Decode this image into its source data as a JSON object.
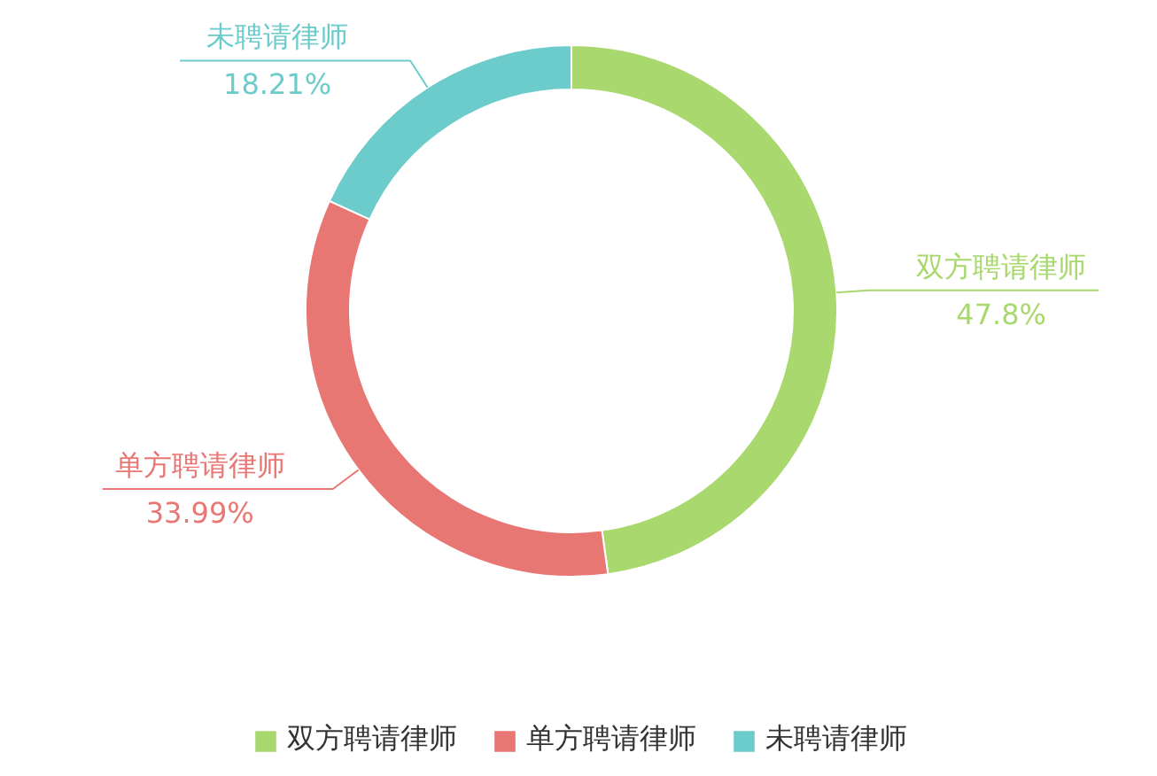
{
  "chart_data": {
    "type": "donut",
    "categories": [
      "双方聘请律师",
      "单方聘请律师",
      "未聘请律师"
    ],
    "values": [
      47.8,
      33.99,
      18.21
    ],
    "colors": [
      "#a8d86e",
      "#e87673",
      "#6ccbcb"
    ],
    "value_labels": [
      "47.8%",
      "33.99%",
      "18.21%"
    ],
    "legend": "bottom"
  }
}
